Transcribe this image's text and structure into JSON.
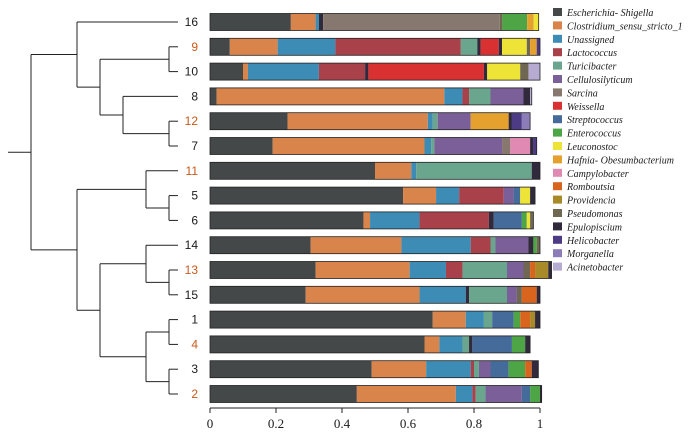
{
  "chart_data": {
    "type": "stacked-horizontal-bar-with-dendrogram",
    "title": "",
    "xlabel": "",
    "ylabel": "",
    "xlim": [
      0,
      1
    ],
    "x_ticks": [
      "0",
      "0.2",
      "0.4",
      "0.6",
      "0.8",
      "1"
    ],
    "x_tick_values": [
      0,
      0.2,
      0.4,
      0.6,
      0.8,
      1
    ],
    "legend_position": "right",
    "taxa": [
      {
        "name": "Escherichia- Shigella",
        "color": "#444849"
      },
      {
        "name": "Clostridium_sensu_stricto_1",
        "color": "#d9844b"
      },
      {
        "name": "Unassigned",
        "color": "#3d8cb5"
      },
      {
        "name": "Lactococcus",
        "color": "#a8414a"
      },
      {
        "name": "Turicibacter",
        "color": "#6aa58d"
      },
      {
        "name": "Cellulosilyticum",
        "color": "#7a5f98"
      },
      {
        "name": "Sarcina",
        "color": "#87786f"
      },
      {
        "name": "Weissella",
        "color": "#d93131"
      },
      {
        "name": "Streptococcus",
        "color": "#456b9a"
      },
      {
        "name": "Enterococcus",
        "color": "#4ea545"
      },
      {
        "name": "Leuconostoc",
        "color": "#eee337"
      },
      {
        "name": "Hafnia- Obesumbacterium",
        "color": "#e4a12e"
      },
      {
        "name": "Campylobacter",
        "color": "#e08ab3"
      },
      {
        "name": "Romboutsia",
        "color": "#d9641e"
      },
      {
        "name": "Providencia",
        "color": "#a88a28"
      },
      {
        "name": "Pseudomonas",
        "color": "#6f6752"
      },
      {
        "name": "Epulopiscium",
        "color": "#302a3c"
      },
      {
        "name": "Helicobacter",
        "color": "#4d3c85"
      },
      {
        "name": "Morganella",
        "color": "#8c7cb8"
      },
      {
        "name": "Acinetobacter",
        "color": "#b6abd0"
      }
    ],
    "samples": [
      {
        "label": "16",
        "highlight": false,
        "segments": [
          [
            "Escherichia- Shigella",
            0.245
          ],
          [
            "Clostridium_sensu_stricto_1",
            0.075
          ],
          [
            "Unassigned",
            0.01
          ],
          [
            "Epulopiscium",
            0.013
          ],
          [
            "Sarcina",
            0.535
          ],
          [
            "Pseudomonas",
            0.008
          ],
          [
            "Enterococcus",
            0.075
          ],
          [
            "Hafnia- Obesumbacterium",
            0.02
          ],
          [
            "Leuconostoc",
            0.015
          ]
        ]
      },
      {
        "label": "9",
        "highlight": true,
        "segments": [
          [
            "Escherichia- Shigella",
            0.06
          ],
          [
            "Clostridium_sensu_stricto_1",
            0.145
          ],
          [
            "Unassigned",
            0.175
          ],
          [
            "Lactococcus",
            0.38
          ],
          [
            "Turicibacter",
            0.05
          ],
          [
            "Epulopiscium",
            0.01
          ],
          [
            "Weissella",
            0.055
          ],
          [
            "Epulopiscium",
            0.01
          ],
          [
            "Leuconostoc",
            0.075
          ],
          [
            "Pseudomonas",
            0.01
          ],
          [
            "Hafnia- Obesumbacterium",
            0.02
          ],
          [
            "Helicobacter",
            0.01
          ]
        ]
      },
      {
        "label": "10",
        "highlight": false,
        "segments": [
          [
            "Escherichia- Shigella",
            0.1
          ],
          [
            "Clostridium_sensu_stricto_1",
            0.015
          ],
          [
            "Unassigned",
            0.215
          ],
          [
            "Lactococcus",
            0.14
          ],
          [
            "Epulopiscium",
            0.01
          ],
          [
            "Weissella",
            0.35
          ],
          [
            "Epulopiscium",
            0.01
          ],
          [
            "Leuconostoc",
            0.1
          ],
          [
            "Pseudomonas",
            0.025
          ],
          [
            "Acinetobacter",
            0.035
          ]
        ]
      },
      {
        "label": "8",
        "highlight": false,
        "segments": [
          [
            "Escherichia- Shigella",
            0.02
          ],
          [
            "Clostridium_sensu_stricto_1",
            0.69
          ],
          [
            "Unassigned",
            0.055
          ],
          [
            "Lactococcus",
            0.02
          ],
          [
            "Turicibacter",
            0.065
          ],
          [
            "Cellulosilyticum",
            0.1
          ],
          [
            "Epulopiscium",
            0.02
          ],
          [
            "Acinetobacter",
            0.005
          ]
        ]
      },
      {
        "label": "12",
        "highlight": true,
        "segments": [
          [
            "Escherichia- Shigella",
            0.235
          ],
          [
            "Clostridium_sensu_stricto_1",
            0.425
          ],
          [
            "Unassigned",
            0.015
          ],
          [
            "Turicibacter",
            0.015
          ],
          [
            "Cellulosilyticum",
            0.1
          ],
          [
            "Hafnia- Obesumbacterium",
            0.115
          ],
          [
            "Epulopiscium",
            0.01
          ],
          [
            "Helicobacter",
            0.03
          ],
          [
            "Morganella",
            0.025
          ]
        ]
      },
      {
        "label": "7",
        "highlight": false,
        "segments": [
          [
            "Escherichia- Shigella",
            0.19
          ],
          [
            "Clostridium_sensu_stricto_1",
            0.46
          ],
          [
            "Unassigned",
            0.02
          ],
          [
            "Turicibacter",
            0.01
          ],
          [
            "Cellulosilyticum",
            0.205
          ],
          [
            "Sarcina",
            0.025
          ],
          [
            "Campylobacter",
            0.06
          ],
          [
            "Epulopiscium",
            0.01
          ],
          [
            "Helicobacter",
            0.01
          ]
        ]
      },
      {
        "label": "11",
        "highlight": true,
        "segments": [
          [
            "Escherichia- Shigella",
            0.5
          ],
          [
            "Clostridium_sensu_stricto_1",
            0.11
          ],
          [
            "Unassigned",
            0.015
          ],
          [
            "Turicibacter",
            0.35
          ],
          [
            "Epulopiscium",
            0.025
          ]
        ]
      },
      {
        "label": "5",
        "highlight": false,
        "segments": [
          [
            "Escherichia- Shigella",
            0.585
          ],
          [
            "Clostridium_sensu_stricto_1",
            0.1
          ],
          [
            "Unassigned",
            0.07
          ],
          [
            "Lactococcus",
            0.135
          ],
          [
            "Cellulosilyticum",
            0.03
          ],
          [
            "Streptococcus",
            0.02
          ],
          [
            "Leuconostoc",
            0.03
          ],
          [
            "Epulopiscium",
            0.015
          ]
        ]
      },
      {
        "label": "6",
        "highlight": false,
        "segments": [
          [
            "Escherichia- Shigella",
            0.465
          ],
          [
            "Clostridium_sensu_stricto_1",
            0.02
          ],
          [
            "Unassigned",
            0.15
          ],
          [
            "Lactococcus",
            0.21
          ],
          [
            "Epulopiscium",
            0.015
          ],
          [
            "Streptococcus",
            0.085
          ],
          [
            "Enterococcus",
            0.015
          ],
          [
            "Leuconostoc",
            0.01
          ],
          [
            "Pseudomonas",
            0.01
          ]
        ]
      },
      {
        "label": "14",
        "highlight": false,
        "segments": [
          [
            "Escherichia- Shigella",
            0.305
          ],
          [
            "Clostridium_sensu_stricto_1",
            0.275
          ],
          [
            "Unassigned",
            0.21
          ],
          [
            "Lactococcus",
            0.06
          ],
          [
            "Turicibacter",
            0.015
          ],
          [
            "Cellulosilyticum",
            0.1
          ],
          [
            "Epulopiscium",
            0.015
          ],
          [
            "Enterococcus",
            0.01
          ],
          [
            "Pseudomonas",
            0.01
          ]
        ]
      },
      {
        "label": "13",
        "highlight": true,
        "segments": [
          [
            "Escherichia- Shigella",
            0.32
          ],
          [
            "Clostridium_sensu_stricto_1",
            0.285
          ],
          [
            "Unassigned",
            0.11
          ],
          [
            "Lactococcus",
            0.05
          ],
          [
            "Turicibacter",
            0.135
          ],
          [
            "Cellulosilyticum",
            0.05
          ],
          [
            "Pseudomonas",
            0.02
          ],
          [
            "Romboutsia",
            0.015
          ],
          [
            "Providencia",
            0.04
          ],
          [
            "Epulopiscium",
            0.01
          ]
        ]
      },
      {
        "label": "15",
        "highlight": false,
        "segments": [
          [
            "Escherichia- Shigella",
            0.29
          ],
          [
            "Clostridium_sensu_stricto_1",
            0.345
          ],
          [
            "Unassigned",
            0.14
          ],
          [
            "Epulopiscium",
            0.01
          ],
          [
            "Turicibacter",
            0.115
          ],
          [
            "Cellulosilyticum",
            0.03
          ],
          [
            "Pseudomonas",
            0.015
          ],
          [
            "Romboutsia",
            0.045
          ],
          [
            "Epulopiscium",
            0.01
          ]
        ]
      },
      {
        "label": "1",
        "highlight": false,
        "segments": [
          [
            "Escherichia- Shigella",
            0.675
          ],
          [
            "Clostridium_sensu_stricto_1",
            0.1
          ],
          [
            "Unassigned",
            0.055
          ],
          [
            "Turicibacter",
            0.025
          ],
          [
            "Streptococcus",
            0.065
          ],
          [
            "Enterococcus",
            0.02
          ],
          [
            "Romboutsia",
            0.03
          ],
          [
            "Providencia",
            0.015
          ],
          [
            "Epulopiscium",
            0.015
          ]
        ]
      },
      {
        "label": "4",
        "highlight": true,
        "segments": [
          [
            "Escherichia- Shigella",
            0.65
          ],
          [
            "Clostridium_sensu_stricto_1",
            0.045
          ],
          [
            "Unassigned",
            0.07
          ],
          [
            "Turicibacter",
            0.02
          ],
          [
            "Epulopiscium",
            0.01
          ],
          [
            "Streptococcus",
            0.12
          ],
          [
            "Enterococcus",
            0.04
          ],
          [
            "Epulopiscium",
            0.015
          ]
        ]
      },
      {
        "label": "3",
        "highlight": false,
        "segments": [
          [
            "Escherichia- Shigella",
            0.49
          ],
          [
            "Clostridium_sensu_stricto_1",
            0.165
          ],
          [
            "Unassigned",
            0.135
          ],
          [
            "Lactococcus",
            0.01
          ],
          [
            "Turicibacter",
            0.015
          ],
          [
            "Cellulosilyticum",
            0.035
          ],
          [
            "Streptococcus",
            0.055
          ],
          [
            "Enterococcus",
            0.05
          ],
          [
            "Romboutsia",
            0.02
          ],
          [
            "Epulopiscium",
            0.02
          ]
        ]
      },
      {
        "label": "2",
        "highlight": true,
        "segments": [
          [
            "Escherichia- Shigella",
            0.445
          ],
          [
            "Clostridium_sensu_stricto_1",
            0.3
          ],
          [
            "Unassigned",
            0.05
          ],
          [
            "Lactococcus",
            0.01
          ],
          [
            "Turicibacter",
            0.03
          ],
          [
            "Cellulosilyticum",
            0.11
          ],
          [
            "Streptococcus",
            0.025
          ],
          [
            "Enterococcus",
            0.03
          ],
          [
            "Epulopiscium",
            0.005
          ]
        ]
      }
    ],
    "dendrogram": {
      "tree": [
        [
          [
            [
              "16",
              [
                [
                  "9",
                  "10"
                ],
                [
                  "8",
                  [
                    [
                      "12",
                      "7"
                    ]
                  ]
                ]
              ]
            ]
          ],
          [
            [
              [
                "11",
                [
                  "5",
                  "6"
                ]
              ]
            ],
            [
              [
                [
                  "14",
                  [
                    "13",
                    "15"
                  ]
                ]
              ],
              [
                [
                  "1",
                  "4"
                ],
                [
                  "3",
                  "2"
                ]
              ]
            ]
          ]
        ]
      ]
    }
  }
}
